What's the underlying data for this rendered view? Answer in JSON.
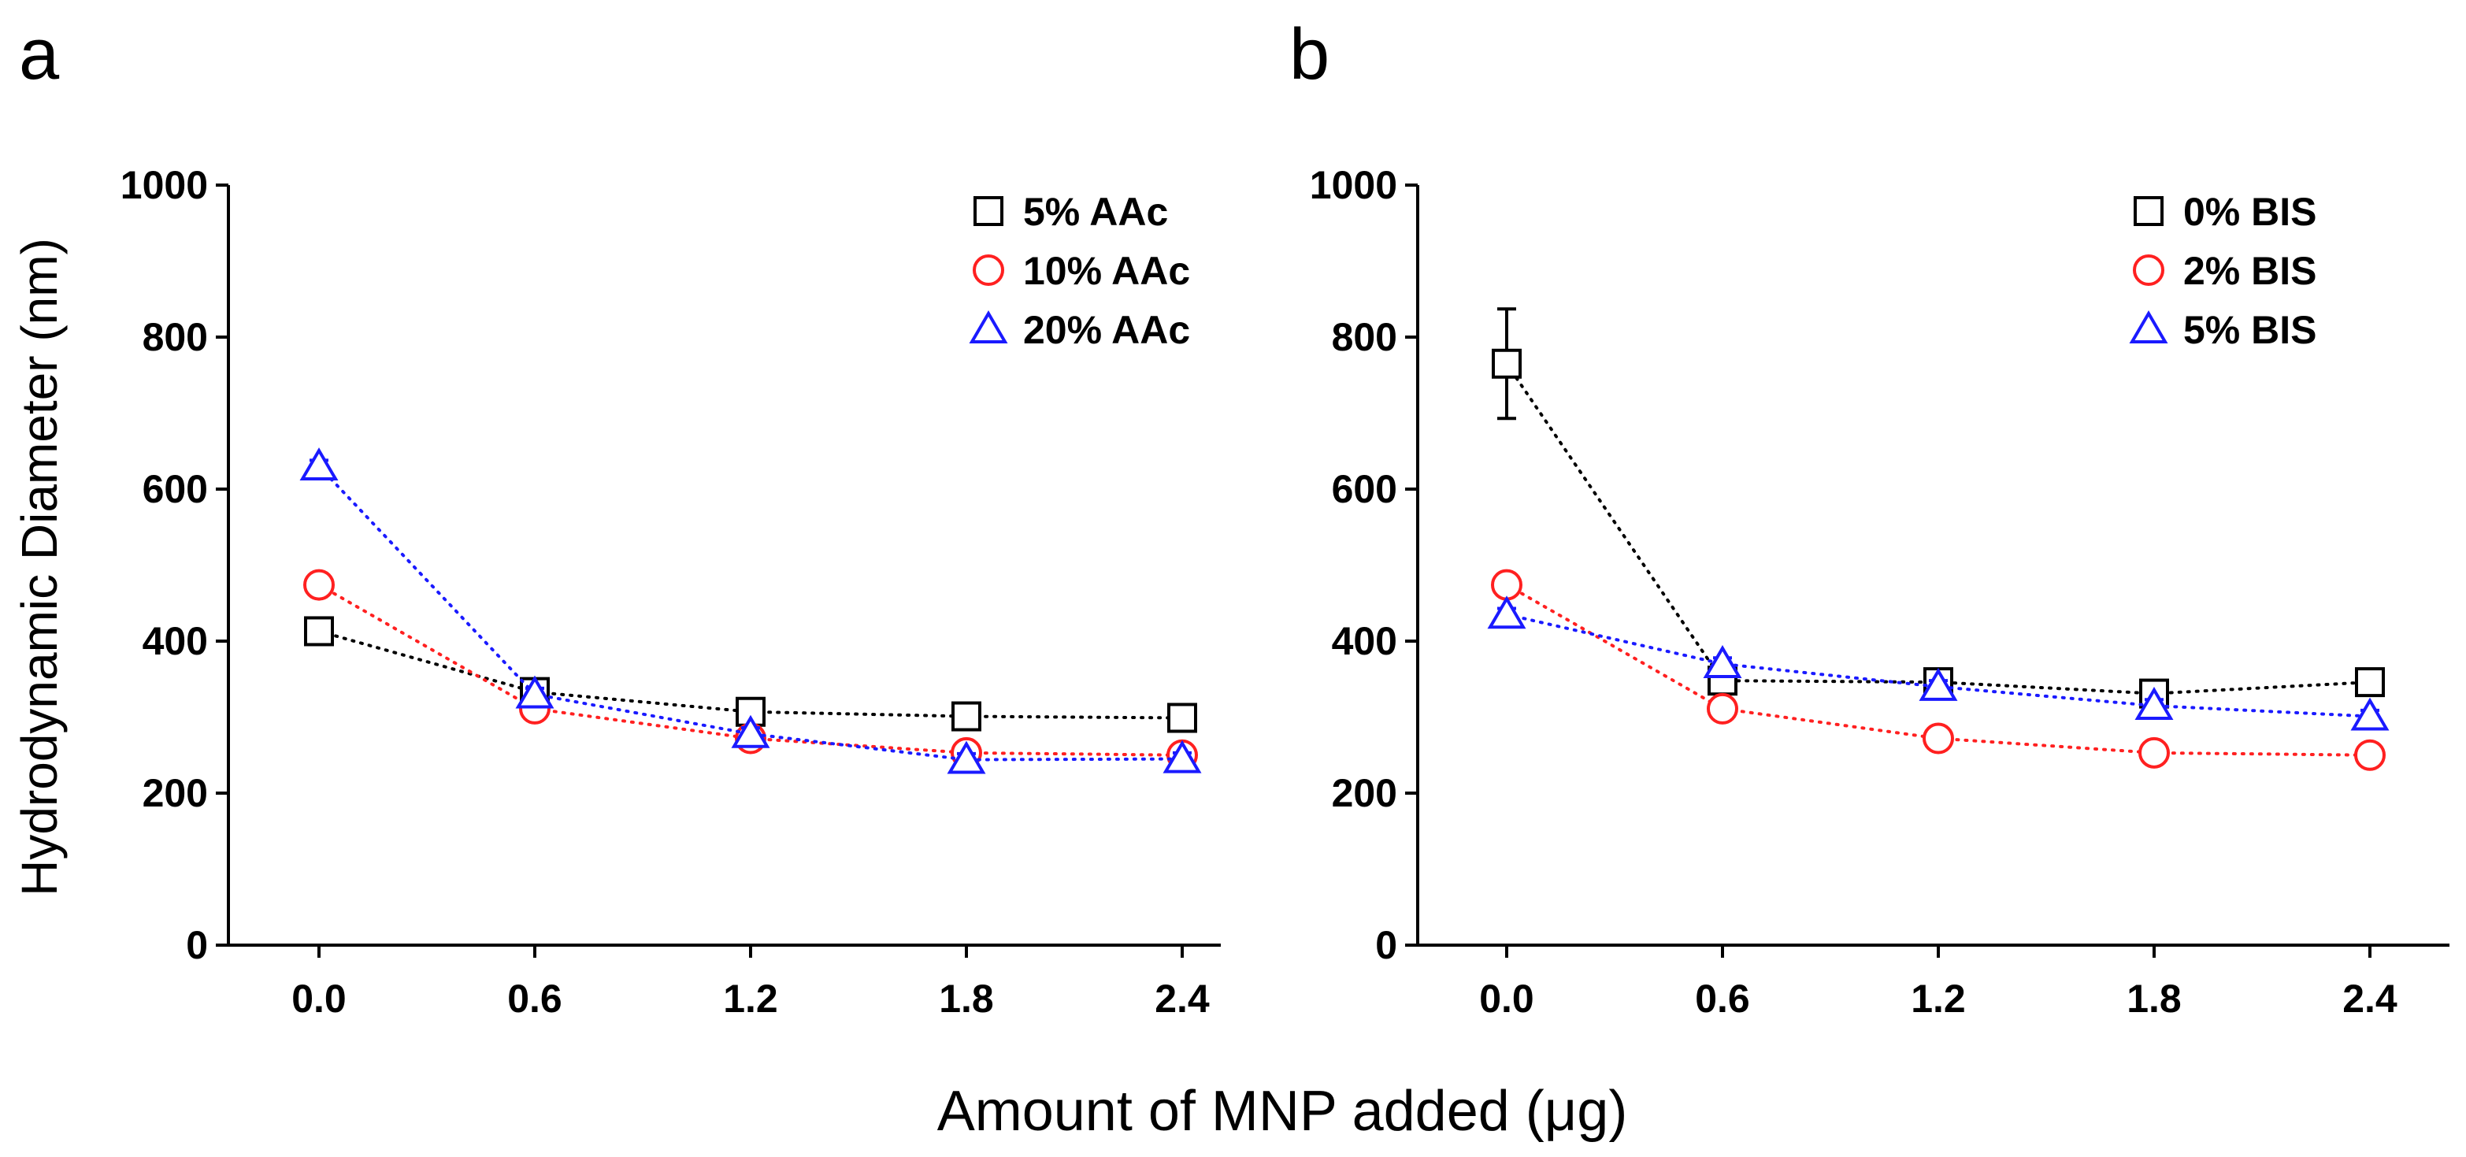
{
  "figure": {
    "shared_xlabel": "Amount of MNP added (μg)",
    "shared_ylabel": "Hydrodynamic Diameter (nm)"
  },
  "chart_data": [
    {
      "type": "line",
      "panel": "a",
      "title": "",
      "xlabel": "Amount of MNP added (μg)",
      "ylabel": "Hydrodynamic Diameter (nm)",
      "x": [
        0.0,
        0.6,
        1.2,
        1.8,
        2.4
      ],
      "x_ticks": [
        "0.0",
        "0.6",
        "1.2",
        "1.8",
        "2.4"
      ],
      "y_ticks": [
        "0",
        "200",
        "400",
        "600",
        "800",
        "1000"
      ],
      "ylim": [
        0,
        1000
      ],
      "grid": false,
      "legend_position": "top-right",
      "series": [
        {
          "name": "5% AAc",
          "color": "#000000",
          "marker": "square",
          "values": [
            413,
            333,
            307,
            301,
            299
          ],
          "errors": [
            8,
            8,
            8,
            8,
            8
          ]
        },
        {
          "name": "10% AAc",
          "color": "#ff2020",
          "marker": "circle",
          "values": [
            474,
            311,
            272,
            253,
            250
          ],
          "errors": [
            8,
            8,
            8,
            8,
            8
          ]
        },
        {
          "name": "20% AAc",
          "color": "#1a1aff",
          "marker": "triangle",
          "values": [
            630,
            330,
            278,
            244,
            245
          ],
          "errors": [
            8,
            8,
            8,
            8,
            8
          ]
        }
      ]
    },
    {
      "type": "line",
      "panel": "b",
      "title": "",
      "xlabel": "Amount of MNP added (μg)",
      "ylabel": "",
      "x": [
        0.0,
        0.6,
        1.2,
        1.8,
        2.4
      ],
      "x_ticks": [
        "0.0",
        "0.6",
        "1.2",
        "1.8",
        "2.4"
      ],
      "y_ticks": [
        "0",
        "200",
        "400",
        "600",
        "800",
        "1000"
      ],
      "ylim": [
        0,
        1000
      ],
      "grid": false,
      "legend_position": "top-right",
      "series": [
        {
          "name": "0% BIS",
          "color": "#000000",
          "marker": "square",
          "values": [
            765,
            348,
            346,
            331,
            346
          ],
          "errors": [
            72,
            8,
            8,
            8,
            8
          ]
        },
        {
          "name": "2% BIS",
          "color": "#ff2020",
          "marker": "circle",
          "values": [
            474,
            311,
            272,
            253,
            250
          ],
          "errors": [
            8,
            8,
            8,
            8,
            8
          ]
        },
        {
          "name": "5% BIS",
          "color": "#1a1aff",
          "marker": "triangle",
          "values": [
            435,
            370,
            340,
            315,
            301
          ],
          "errors": [
            8,
            8,
            8,
            8,
            8
          ]
        }
      ]
    }
  ]
}
